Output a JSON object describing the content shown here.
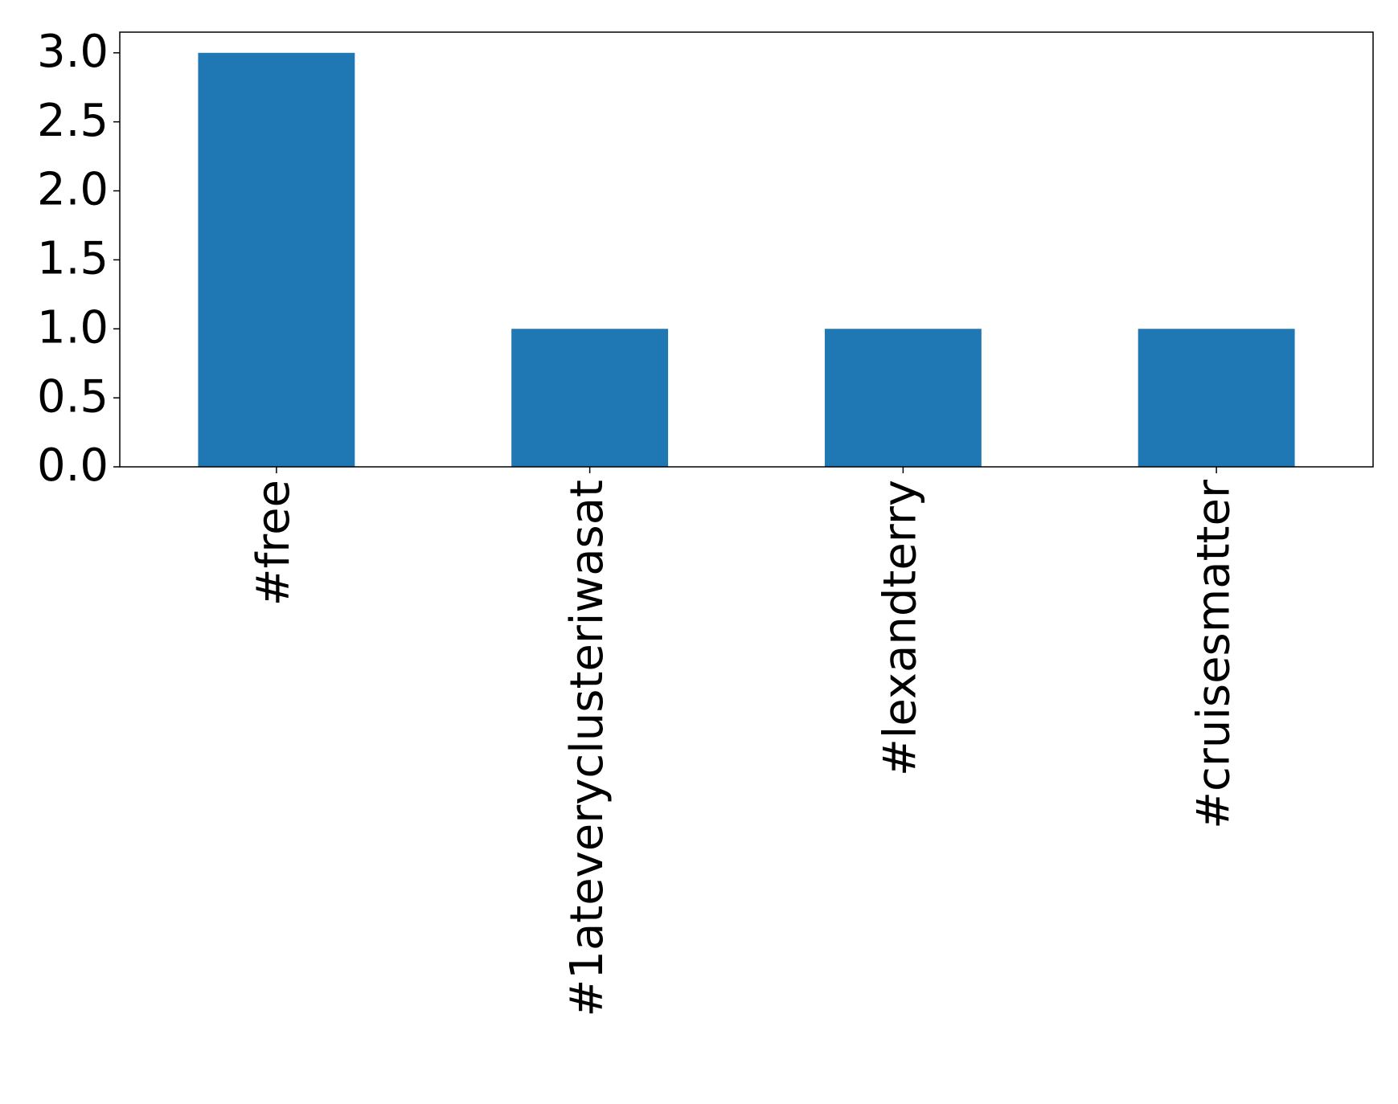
{
  "chart_data": {
    "type": "bar",
    "categories": [
      "#free",
      "#1ateveryclusteriwasat",
      "#lexandterry",
      "#cruisesmatter"
    ],
    "values": [
      3,
      1,
      1,
      1
    ],
    "color": "#1f77b4",
    "ylim": [
      0,
      3.15
    ],
    "yticks": [
      {
        "value": 0,
        "label": "0.0"
      },
      {
        "value": 0.5,
        "label": "0.5"
      },
      {
        "value": 1,
        "label": "1.0"
      },
      {
        "value": 1.5,
        "label": "1.5"
      },
      {
        "value": 2,
        "label": "2.0"
      },
      {
        "value": 2.5,
        "label": "2.5"
      },
      {
        "value": 3,
        "label": "3.0"
      }
    ],
    "grid": false
  }
}
